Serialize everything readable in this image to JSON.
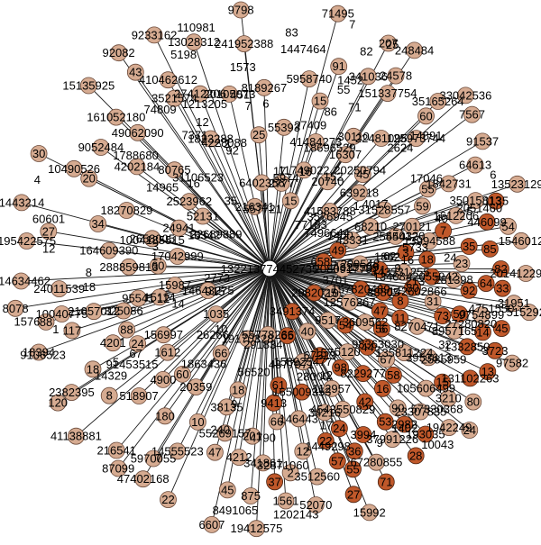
{
  "graph": {
    "type": "star-network",
    "colors": {
      "edge": "#1a1a1a",
      "light_node_fill": "#d6ab91",
      "light_node_stroke": "#6b4a3a",
      "dark_node_fill": "#c0582a",
      "dark_node_stroke": "#4a2210",
      "center_fill": "#ffffff"
    },
    "center": {
      "id": "132213774452735"
    },
    "nodes_light": [
      "208091775",
      "195422575",
      "14643275",
      "12576267",
      "2658005",
      "24578",
      "14555523",
      "43331",
      "158925477",
      "27412206",
      "31528557",
      "9052484",
      "209548",
      "20105073",
      "1612206",
      "248484",
      "410462612",
      "2777",
      "151337754",
      "43331255",
      "19412575",
      "216541",
      "281398",
      "10490526",
      "52070",
      "92082",
      "18270829",
      "68210",
      "241952388",
      "67280855",
      "21057012",
      "20740",
      "2555412",
      "91537",
      "156997",
      "4543550829",
      "22481095",
      "64613",
      "13523129",
      "135811224",
      "1546012",
      "325086",
      "7567",
      "2523962",
      "180",
      "8270471",
      "1842731",
      "146443",
      "125973744",
      "4202184",
      "639218",
      "10040775",
      "2382395",
      "1823288",
      "214634462",
      "5958740",
      "164609390",
      "95541",
      "18394",
      "34216",
      "216341",
      "4201",
      "1443214",
      "201",
      "25",
      "60",
      "40",
      "270121",
      "47402168",
      "41484273",
      "13994588",
      "80765",
      "6402356",
      "3521574",
      "55269157",
      "33042536",
      "341036",
      "4212",
      "105606499",
      "55778266",
      "5970055",
      "15992",
      "1612",
      "1561",
      "161052180",
      "49062090",
      "6607",
      "13028312",
      "41138881",
      "8078",
      "15135925",
      "17042999",
      "341861",
      "55393",
      "8957165",
      "5152925",
      "41583788",
      "518907",
      "3609562",
      "35015813",
      "288859813",
      "23307835",
      "38135",
      "67",
      "120",
      "207",
      "60",
      "20",
      "45",
      "88",
      "20359",
      "24011539",
      "20141229975",
      "97582",
      "87099",
      "9798",
      "3210",
      "15987",
      "24",
      "66",
      "34",
      "16307",
      "875",
      "43",
      "9754899",
      "8189267",
      "1942249",
      "37991226",
      "11749022",
      "3512560",
      "52131",
      "24941",
      "91",
      "3953613",
      "31951",
      "54",
      "71495",
      "30110",
      "117",
      "9517",
      "8",
      "18",
      "15",
      "23",
      "4900",
      "2",
      "9233162",
      "112957",
      "10",
      "45",
      "19170328",
      "35165264",
      "5120",
      "15114",
      "1035",
      "30",
      "18",
      "59",
      "10",
      "15",
      "88",
      "27",
      "66",
      "12",
      "22",
      "31",
      "60",
      "80",
      "90",
      "24",
      "55",
      "47"
    ],
    "nodes_dark": [
      "446099",
      "3491374",
      "131102263",
      "193035",
      "157820489",
      "1135",
      "1332850",
      "165009353",
      "8229277",
      "2982025",
      "3994",
      "54",
      "33805",
      "67323",
      "24",
      "9413",
      "53",
      "35",
      "2982",
      "3",
      "42",
      "55",
      "3723",
      "7",
      "57",
      "82",
      "44",
      "98",
      "56",
      "11",
      "45",
      "42055942",
      "15",
      "8",
      "6585",
      "33",
      "28",
      "47",
      "21",
      "22",
      "27",
      "58",
      "92",
      "73",
      "61",
      "71",
      "14",
      "36",
      "49",
      "50",
      "64",
      "85",
      "37",
      "80",
      "65",
      "18",
      "16",
      "13"
    ],
    "labels_extra": [
      "57330368",
      "1788680",
      "4325599",
      "22689889",
      "142602866",
      "98363030",
      "1004185515",
      "32871060",
      "3576945",
      "440320",
      "27280820",
      "291834",
      "60601",
      "7371",
      "12",
      "2585959",
      "10043",
      "14965",
      "16",
      "1863436",
      "18696529",
      "13408",
      "1213205",
      "56520",
      "26266",
      "74809",
      "31106523",
      "14891",
      "9106523",
      "2624",
      "4877971",
      "27409",
      "40",
      "14329",
      "86",
      "92",
      "77183",
      "2051460",
      "7496644",
      "1402",
      "17",
      "1862",
      "17046",
      "8491065",
      "4751550",
      "28000",
      "1400",
      "62",
      "82",
      "1449298",
      "12",
      "4790",
      "5198",
      "83",
      "5733",
      "152",
      "2773",
      "915",
      "35",
      "12",
      "4228088",
      "16",
      "213",
      "6",
      "7",
      "1202143",
      "16342",
      "7",
      "4017",
      "1452",
      "9",
      "91453515",
      "557721",
      "1573",
      "16",
      "17",
      "18",
      "7",
      "8",
      "9",
      "20250794",
      "1576",
      "5974",
      "2",
      "3",
      "4",
      "5",
      "6",
      "157",
      "240",
      "55",
      "6",
      "3",
      "1",
      "32",
      "24",
      "67",
      "71",
      "14",
      "3701",
      "5",
      "25",
      "9",
      "1",
      "10",
      "12",
      "1447464",
      "110981",
      "451"
    ]
  }
}
